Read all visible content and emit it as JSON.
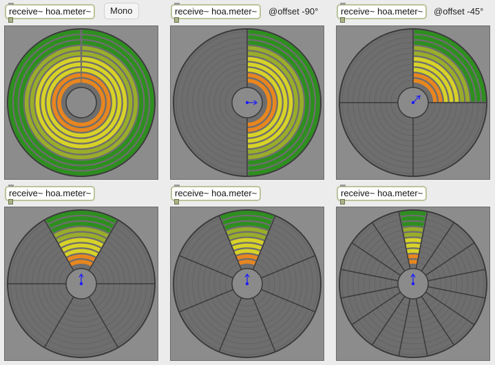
{
  "receive_label": "receive~ hoa.meter~",
  "mono_label": "Mono",
  "offset_a": "@offset -90°",
  "offset_b": "@offset -45°",
  "meters": [
    {
      "channels": 1,
      "offset_deg": 0,
      "active": true
    },
    {
      "channels": 2,
      "offset_deg": -90,
      "active": true
    },
    {
      "channels": 4,
      "offset_deg": -45,
      "active": true
    },
    {
      "channels": 6,
      "offset_deg": 0,
      "active": true
    },
    {
      "channels": 8,
      "offset_deg": 0,
      "active": true
    },
    {
      "channels": 16,
      "offset_deg": 0,
      "active": true
    }
  ],
  "colors": {
    "background": "#ececec",
    "meter_panel": "#8c8c8c",
    "disk": "#6e6e6e",
    "ring_base": "#636363",
    "green": "#2d8f1e",
    "olive": "#9aad2a",
    "yellow": "#d8d228",
    "orange": "#e8861f",
    "vector": "#1a1aff"
  }
}
